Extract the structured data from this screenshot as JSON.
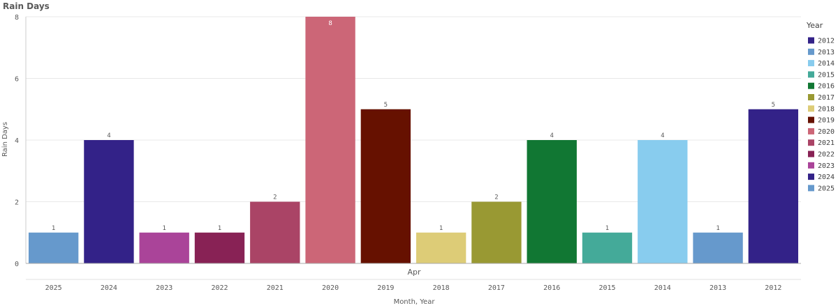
{
  "chart_data": {
    "type": "bar",
    "title": "Rain Days",
    "xlabel": "Month, Year",
    "ylabel": "Rain Days",
    "group_label": "Apr",
    "categories": [
      "2025",
      "2024",
      "2023",
      "2022",
      "2021",
      "2020",
      "2019",
      "2018",
      "2017",
      "2016",
      "2015",
      "2014",
      "2013",
      "2012"
    ],
    "values": [
      1,
      4,
      1,
      1,
      2,
      8,
      5,
      1,
      2,
      4,
      1,
      4,
      1,
      5
    ],
    "ylim": [
      0,
      8
    ],
    "yticks": [
      "0",
      "2",
      "4",
      "6",
      "8"
    ],
    "grid": true,
    "legend_position": "right",
    "legend": {
      "title": "Year",
      "entries": [
        {
          "label": "2012",
          "color": "#332288"
        },
        {
          "label": "2013",
          "color": "#6699cc"
        },
        {
          "label": "2014",
          "color": "#88ccee"
        },
        {
          "label": "2015",
          "color": "#44aa99"
        },
        {
          "label": "2016",
          "color": "#117733"
        },
        {
          "label": "2017",
          "color": "#999933"
        },
        {
          "label": "2018",
          "color": "#ddcc77"
        },
        {
          "label": "2019",
          "color": "#661100"
        },
        {
          "label": "2020",
          "color": "#cc6677"
        },
        {
          "label": "2021",
          "color": "#aa4466"
        },
        {
          "label": "2022",
          "color": "#882255"
        },
        {
          "label": "2023",
          "color": "#aa4499"
        },
        {
          "label": "2024",
          "color": "#332288"
        },
        {
          "label": "2025",
          "color": "#6699cc"
        }
      ]
    }
  }
}
